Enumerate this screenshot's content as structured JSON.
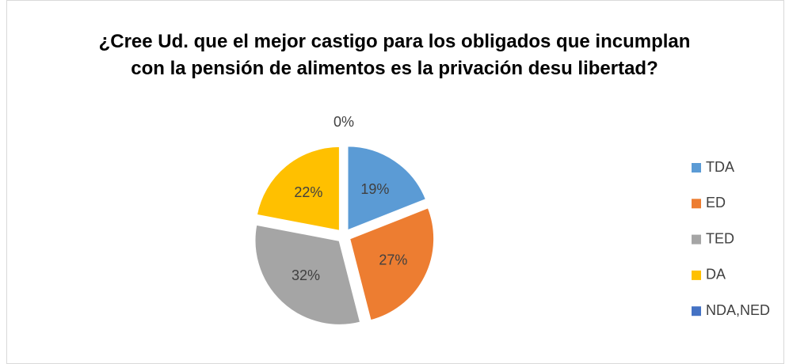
{
  "chart_data": {
    "type": "pie",
    "title": "¿Cree Ud. que el mejor castigo para los obligados que incumplan con la pensión de alimentos es la privación desu libertad?",
    "categories": [
      "TDA",
      "ED",
      "TED",
      "DA",
      "NDA,NED"
    ],
    "values": [
      19,
      27,
      32,
      22,
      0
    ],
    "value_labels": [
      "19%",
      "27%",
      "32%",
      "22%",
      "0%"
    ],
    "colors": [
      "#5b9bd5",
      "#ed7d31",
      "#a5a5a5",
      "#ffc000",
      "#4472c4"
    ],
    "legend": "right"
  }
}
